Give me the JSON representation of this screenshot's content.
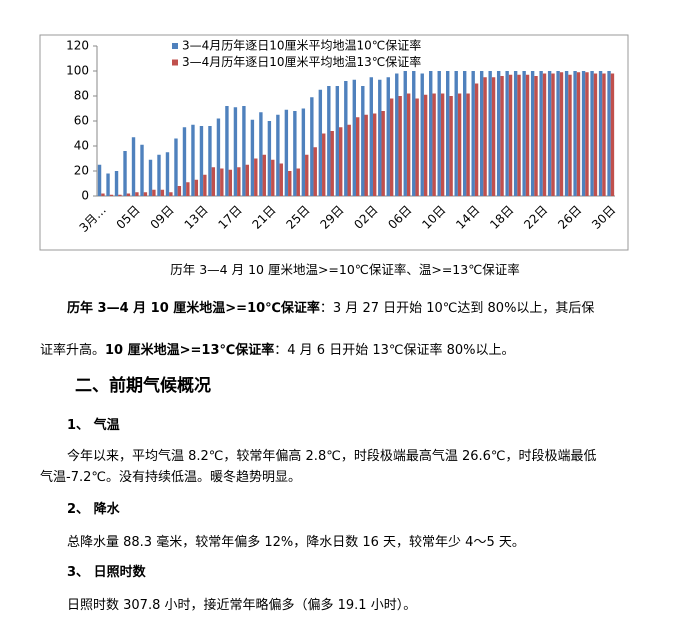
{
  "chart_data": {
    "type": "bar",
    "categories": [
      "3月…",
      null,
      null,
      null,
      "05日",
      null,
      null,
      null,
      "09日",
      null,
      null,
      null,
      "13日",
      null,
      null,
      null,
      "17日",
      null,
      null,
      null,
      "21日",
      null,
      null,
      null,
      "25日",
      null,
      null,
      null,
      "29日",
      null,
      null,
      null,
      "02日",
      null,
      null,
      null,
      "06日",
      null,
      null,
      null,
      "10日",
      null,
      null,
      null,
      "14日",
      null,
      null,
      null,
      "18日",
      null,
      null,
      null,
      "22日",
      null,
      null,
      null,
      "26日",
      null,
      null,
      null,
      "30日"
    ],
    "series": [
      {
        "name": "3—4月历年逐日10厘米平均地温10℃保证率",
        "color": "#4f81bd",
        "values": [
          25,
          18,
          20,
          36,
          47,
          41,
          29,
          33,
          35,
          46,
          55,
          57,
          56,
          56,
          62,
          72,
          71,
          72,
          61,
          67,
          60,
          65,
          69,
          68,
          70,
          79,
          85,
          88,
          88,
          92,
          93,
          88,
          95,
          93,
          95,
          98,
          100,
          100,
          98,
          100,
          100,
          100,
          100,
          100,
          100,
          100,
          100,
          100,
          100,
          100,
          100,
          100,
          100,
          100,
          100,
          100,
          100,
          100,
          100,
          100,
          100
        ]
      },
      {
        "name": "3—4月历年逐日10厘米平均地温13℃保证率",
        "color": "#c0504d",
        "values": [
          2,
          1,
          1,
          2,
          3,
          3,
          5,
          5,
          3,
          8,
          11,
          13,
          17,
          23,
          22,
          21,
          23,
          25,
          30,
          33,
          29,
          26,
          20,
          22,
          33,
          39,
          50,
          52,
          55,
          57,
          63,
          65,
          66,
          68,
          78,
          80,
          82,
          78,
          81,
          82,
          82,
          80,
          82,
          82,
          90,
          95,
          95,
          96,
          97,
          97,
          97,
          96,
          98,
          98,
          99,
          97,
          99,
          99,
          98,
          98,
          98
        ]
      }
    ],
    "ylim": [
      0,
      120
    ],
    "yticks": [
      0,
      20,
      40,
      60,
      80,
      100,
      120
    ],
    "grid": false,
    "legend": "top"
  },
  "document": {
    "caption": "历年 3—4 月 10 厘米地温>=10℃保证率、温>=13℃保证率",
    "summary": [
      "历年 3—4 月 10 厘米地温>=10℃保证率",
      "：3 月 27 日开始 10℃达到 80%以上，其后保证率升高。",
      "10 厘米地温>=13℃保证率",
      "：4 月 6 日开始 13℃保证率 80%以上。"
    ],
    "heading": "二、前期气候概况",
    "sections": [
      {
        "title": "1、 气温",
        "text": "今年以来，平均气温 8.2℃，较常年偏高 2.8℃，时段极端最高气温 26.6℃，时段极端最低气温-7.2℃。没有持续低温。暖冬趋势明显。"
      },
      {
        "title": "2、 降水",
        "text": "总降水量 88.3 毫米，较常年偏多 12%，降水日数 16 天，较常年少 4～5 天。"
      },
      {
        "title": "3、 日照时数",
        "text": "日照时数 307.8 小时，接近常年略偏多（偏多 19.1 小时）。"
      }
    ]
  }
}
